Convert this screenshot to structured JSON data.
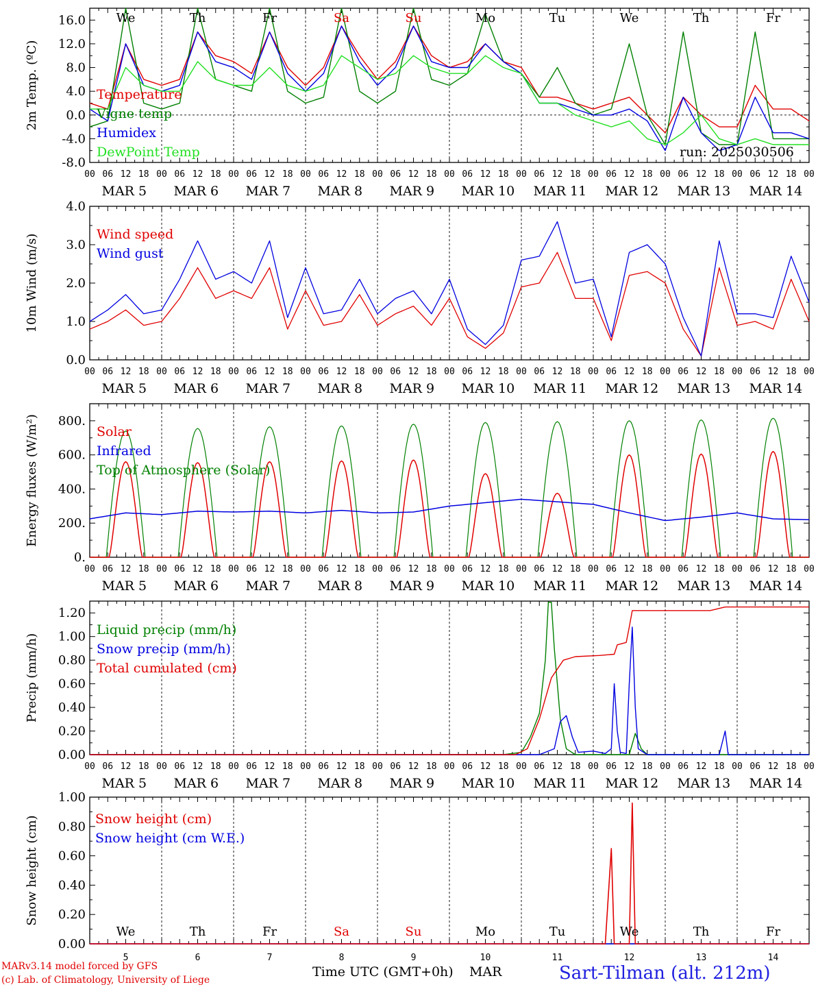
{
  "run_label": "run: 2025030506",
  "x_title": "Time UTC (GMT+0h)",
  "x_month": "MAR",
  "dates": [
    "5",
    "6",
    "7",
    "8",
    "9",
    "10",
    "11",
    "12",
    "13",
    "14"
  ],
  "date_labels": [
    "MAR 5",
    "MAR 6",
    "MAR 7",
    "MAR 8",
    "MAR 9",
    "MAR 10",
    "MAR 11",
    "MAR 12",
    "MAR 13",
    "MAR 14"
  ],
  "hour_ticks": [
    "00",
    "06",
    "12",
    "18"
  ],
  "last_hour_tick": "00",
  "days": [
    {
      "label": "We",
      "color": "#000000"
    },
    {
      "label": "Th",
      "color": "#000000"
    },
    {
      "label": "Fr",
      "color": "#000000"
    },
    {
      "label": "Sa",
      "color": "#e00000"
    },
    {
      "label": "Su",
      "color": "#e00000"
    },
    {
      "label": "Mo",
      "color": "#000000"
    },
    {
      "label": "Tu",
      "color": "#000000"
    },
    {
      "label": "We",
      "color": "#000000"
    },
    {
      "label": "Th",
      "color": "#000000"
    },
    {
      "label": "Fr",
      "color": "#000000"
    }
  ],
  "footer": {
    "model": "MARv3.14 model forced by GFS",
    "lab": "(c) Lab. of Climatology, University of Liege",
    "station": "Sart-Tilman (alt. 212m)"
  },
  "colors": {
    "red": "#e00000",
    "green": "#008000",
    "blue": "#0000e0",
    "lightgreen": "#22e022",
    "station": "#2020e0"
  },
  "chart_data": [
    {
      "type": "line",
      "ylabel": "2m Temp. (ºC)",
      "ylim": [
        -8,
        18
      ],
      "yticks": [
        "16.0",
        "12.0",
        "8.0",
        "4.0",
        "0.0",
        "-4.0",
        "-8.0"
      ],
      "ytick_values": [
        16,
        12,
        8,
        4,
        0,
        -4,
        -8
      ],
      "zero_line": true,
      "x_hours": [
        0,
        6,
        12,
        18,
        24,
        30,
        36,
        42,
        48,
        54,
        60,
        66,
        72,
        78,
        84,
        90,
        96,
        102,
        108,
        114,
        120,
        126,
        132,
        138,
        144,
        150,
        156,
        162,
        168,
        174,
        180,
        186,
        192,
        198,
        204,
        210,
        216,
        222,
        228,
        234,
        240
      ],
      "series": [
        {
          "name": "Temperature",
          "color": "red",
          "values": [
            2,
            1,
            12,
            6,
            5,
            6,
            14,
            10,
            9,
            7,
            14,
            8,
            5,
            8,
            15,
            10,
            6,
            9,
            15,
            10,
            8,
            9,
            12,
            9,
            8,
            3,
            3,
            2,
            1,
            2,
            3,
            0,
            -3,
            3,
            0,
            -2,
            -2,
            5,
            1,
            1,
            -1
          ]
        },
        {
          "name": "Vigne temp",
          "color": "green",
          "values": [
            -2,
            -1,
            18,
            2,
            1,
            2,
            18,
            6,
            5,
            4,
            18,
            4,
            2,
            3,
            18,
            4,
            2,
            4,
            18,
            6,
            5,
            7,
            17,
            9,
            7,
            3,
            8,
            2,
            0,
            1,
            12,
            0,
            -5,
            14,
            -3,
            -5,
            -5,
            14,
            -4,
            -4,
            -4
          ]
        },
        {
          "name": "Humidex",
          "color": "blue",
          "values": [
            1,
            -1,
            12,
            5,
            4,
            5,
            14,
            9,
            8,
            6,
            14,
            7,
            4,
            7,
            15,
            9,
            5,
            8,
            15,
            9,
            8,
            8,
            12,
            9,
            7,
            2,
            2,
            1,
            0,
            0,
            1,
            -1,
            -6,
            3,
            -3,
            -6,
            -5,
            3,
            -3,
            -3,
            -4
          ]
        },
        {
          "name": "DewPoint Temp",
          "color": "lightgreen",
          "values": [
            1,
            1,
            8,
            5,
            4,
            4,
            9,
            6,
            5,
            5,
            8,
            5,
            4,
            5,
            10,
            8,
            6,
            7,
            10,
            8,
            7,
            7,
            10,
            8,
            7,
            2,
            2,
            0,
            -1,
            -2,
            -1,
            -4,
            -5,
            -3,
            0,
            -4,
            -5,
            -4,
            -5,
            -5,
            -5
          ]
        }
      ]
    },
    {
      "type": "line",
      "ylabel": "10m Wind (m/s)",
      "ylim": [
        0,
        4
      ],
      "yticks": [
        "4.0",
        "3.0",
        "2.0",
        "1.0",
        "0.0"
      ],
      "ytick_values": [
        4,
        3,
        2,
        1,
        0
      ],
      "x_hours": [
        0,
        6,
        12,
        18,
        24,
        30,
        36,
        42,
        48,
        54,
        60,
        66,
        72,
        78,
        84,
        90,
        96,
        102,
        108,
        114,
        120,
        126,
        132,
        138,
        144,
        150,
        156,
        162,
        168,
        174,
        180,
        186,
        192,
        198,
        204,
        210,
        216,
        222,
        228,
        234,
        240
      ],
      "series": [
        {
          "name": "Wind speed",
          "color": "red",
          "values": [
            0.8,
            1.0,
            1.3,
            0.9,
            1.0,
            1.6,
            2.4,
            1.6,
            1.8,
            1.6,
            2.4,
            0.8,
            1.8,
            0.9,
            1.0,
            1.7,
            0.9,
            1.2,
            1.4,
            0.9,
            1.6,
            0.6,
            0.3,
            0.7,
            1.9,
            2.0,
            2.8,
            1.6,
            1.6,
            0.5,
            2.2,
            2.3,
            2.0,
            0.8,
            0.1,
            2.4,
            0.9,
            1.0,
            0.8,
            2.1,
            1.0
          ]
        },
        {
          "name": "Wind gust",
          "color": "blue",
          "values": [
            1.0,
            1.3,
            1.7,
            1.2,
            1.3,
            2.1,
            3.1,
            2.1,
            2.3,
            2.0,
            3.1,
            1.1,
            2.4,
            1.2,
            1.3,
            2.1,
            1.2,
            1.6,
            1.8,
            1.2,
            2.1,
            0.8,
            0.4,
            0.9,
            2.6,
            2.7,
            3.6,
            2.0,
            2.1,
            0.6,
            2.8,
            3.0,
            2.5,
            1.1,
            0.1,
            3.1,
            1.2,
            1.2,
            1.1,
            2.7,
            1.5
          ]
        }
      ]
    },
    {
      "type": "line",
      "ylabel": "Energy fluxes (W/m²)",
      "ylim": [
        0,
        900
      ],
      "yticks": [
        "800.",
        "600.",
        "400.",
        "200.",
        "0."
      ],
      "ytick_values": [
        800,
        600,
        400,
        200,
        0
      ],
      "daily_peaks": {
        "solar": [
          560,
          555,
          560,
          565,
          570,
          490,
          375,
          600,
          605,
          620
        ],
        "toa": [
          740,
          755,
          765,
          770,
          780,
          790,
          795,
          800,
          805,
          815
        ]
      },
      "infrared": {
        "x_hours": [
          0,
          12,
          24,
          36,
          48,
          60,
          72,
          84,
          96,
          108,
          120,
          132,
          144,
          156,
          168,
          180,
          192,
          204,
          216,
          228,
          240
        ],
        "values": [
          225,
          260,
          250,
          270,
          265,
          270,
          260,
          275,
          260,
          265,
          300,
          320,
          340,
          325,
          310,
          260,
          215,
          235,
          260,
          225,
          220
        ]
      },
      "series_names": [
        "Solar",
        "Infrared",
        "Top of Atmosphere (Solar)"
      ],
      "series_colors": [
        "red",
        "blue",
        "green"
      ]
    },
    {
      "type": "line",
      "ylabel": "Precip (mm/h)",
      "ylim": [
        0,
        1.3
      ],
      "yticks": [
        "1.20",
        "1.00",
        "0.80",
        "0.60",
        "0.40",
        "0.20",
        "0.00"
      ],
      "ytick_values": [
        1.2,
        1.0,
        0.8,
        0.6,
        0.4,
        0.2,
        0.0
      ],
      "series": [
        {
          "name": "Liquid precip (mm/h)",
          "color": "green",
          "points": [
            [
              0,
              0
            ],
            [
              138,
              0
            ],
            [
              141,
              0.01
            ],
            [
              144,
              0.02
            ],
            [
              147,
              0.15
            ],
            [
              150,
              0.35
            ],
            [
              152,
              0.8
            ],
            [
              153,
              1.29
            ],
            [
              154,
              1.29
            ],
            [
              155,
              0.9
            ],
            [
              157,
              0.3
            ],
            [
              159,
              0.05
            ],
            [
              162,
              0
            ],
            [
              180,
              0
            ],
            [
              182,
              0.18
            ],
            [
              184,
              0.05
            ],
            [
              186,
              0
            ],
            [
              240,
              0
            ]
          ]
        },
        {
          "name": "Snow precip (mm/h)",
          "color": "blue",
          "points": [
            [
              0,
              0
            ],
            [
              150,
              0
            ],
            [
              155,
              0.05
            ],
            [
              157,
              0.28
            ],
            [
              159,
              0.33
            ],
            [
              161,
              0.15
            ],
            [
              163,
              0.02
            ],
            [
              168,
              0.03
            ],
            [
              172,
              0.01
            ],
            [
              174,
              0.05
            ],
            [
              175,
              0.6
            ],
            [
              176,
              0.2
            ],
            [
              177,
              0.02
            ],
            [
              179,
              0.01
            ],
            [
              180,
              0.6
            ],
            [
              181,
              1.08
            ],
            [
              182,
              0.4
            ],
            [
              183,
              0.05
            ],
            [
              186,
              0
            ],
            [
              210,
              0
            ],
            [
              212,
              0.2
            ],
            [
              213,
              0
            ],
            [
              240,
              0
            ]
          ]
        },
        {
          "name": "Total cumulated (cm)",
          "color": "red",
          "points": [
            [
              0,
              0
            ],
            [
              142,
              0
            ],
            [
              146,
              0.05
            ],
            [
              150,
              0.3
            ],
            [
              154,
              0.65
            ],
            [
              158,
              0.8
            ],
            [
              162,
              0.83
            ],
            [
              170,
              0.84
            ],
            [
              175,
              0.85
            ],
            [
              176,
              0.93
            ],
            [
              179,
              0.95
            ],
            [
              180,
              1.08
            ],
            [
              181,
              1.22
            ],
            [
              207,
              1.22
            ],
            [
              212,
              1.25
            ],
            [
              240,
              1.25
            ]
          ]
        }
      ]
    },
    {
      "type": "line",
      "ylabel": "Snow height (cm)",
      "ylim": [
        0,
        1.0
      ],
      "yticks": [
        "1.00",
        "0.80",
        "0.60",
        "0.40",
        "0.20",
        "0.00"
      ],
      "ytick_values": [
        1.0,
        0.8,
        0.6,
        0.4,
        0.2,
        0.0
      ],
      "series": [
        {
          "name": "Snow height (cm)",
          "color": "red",
          "points": [
            [
              0,
              0
            ],
            [
              172,
              0
            ],
            [
              174,
              0.65
            ],
            [
              175,
              0
            ],
            [
              180,
              0
            ],
            [
              181,
              0.96
            ],
            [
              182,
              0
            ],
            [
              240,
              0
            ]
          ]
        },
        {
          "name": "Snow height (cm W.E.)",
          "color": "blue",
          "points": [
            [
              0,
              0
            ],
            [
              240,
              0
            ]
          ]
        }
      ]
    }
  ]
}
